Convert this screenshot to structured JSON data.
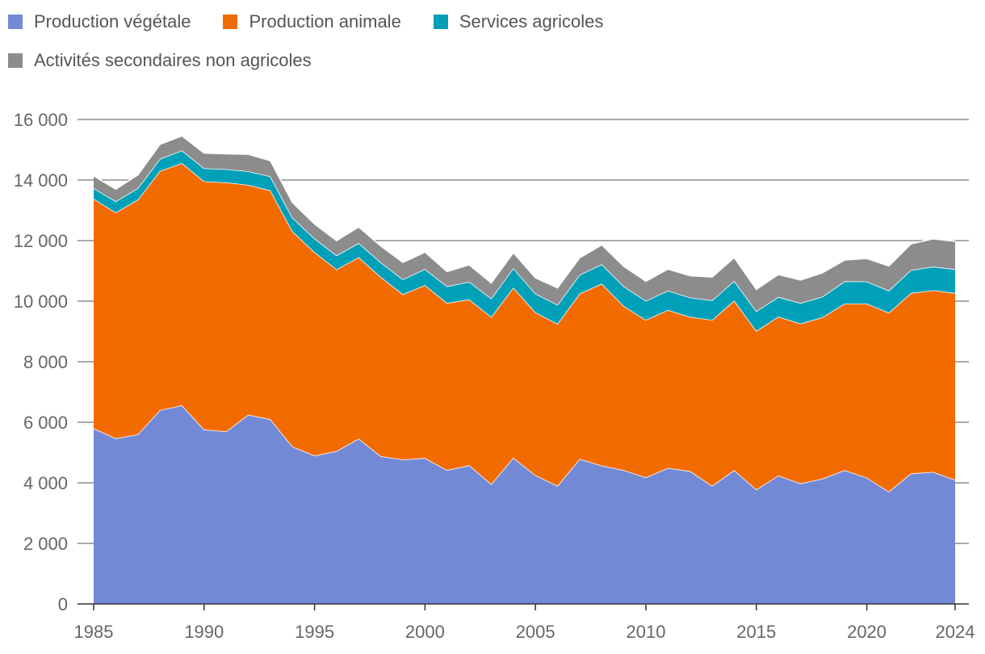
{
  "legend": [
    {
      "label": "Production végétale",
      "color": "#7289d6"
    },
    {
      "label": "Production animale",
      "color": "#f26b00"
    },
    {
      "label": "Services agricoles",
      "color": "#00a0b9"
    },
    {
      "label": "Activités secondaires non agricoles",
      "color": "#8c8c8c"
    }
  ],
  "chart_data": {
    "type": "area",
    "stacked": true,
    "grid": true,
    "legend_position": "top-left",
    "x": [
      1985,
      1986,
      1987,
      1988,
      1989,
      1990,
      1991,
      1992,
      1993,
      1994,
      1995,
      1996,
      1997,
      1998,
      1999,
      2000,
      2001,
      2002,
      2003,
      2004,
      2005,
      2006,
      2007,
      2008,
      2009,
      2010,
      2011,
      2012,
      2013,
      2014,
      2015,
      2016,
      2017,
      2018,
      2019,
      2020,
      2021,
      2022,
      2023,
      2024
    ],
    "xlim": [
      1985,
      2024
    ],
    "xticks": [
      "1985",
      "1990",
      "1995",
      "2000",
      "2005",
      "2010",
      "2015",
      "2020",
      "2024"
    ],
    "ylim": [
      0,
      16000
    ],
    "yticks": [
      "0",
      "2 000",
      "4 000",
      "6 000",
      "8 000",
      "10 000",
      "12 000",
      "14 000",
      "16 000"
    ],
    "series": [
      {
        "name": "Production végétale",
        "color": "#7289d6",
        "values": [
          5800,
          5470,
          5600,
          6400,
          6560,
          5760,
          5700,
          6250,
          6100,
          5200,
          4900,
          5050,
          5460,
          4880,
          4770,
          4820,
          4420,
          4580,
          3960,
          4830,
          4250,
          3900,
          4790,
          4570,
          4420,
          4180,
          4490,
          4390,
          3900,
          4420,
          3780,
          4240,
          3980,
          4140,
          4420,
          4170,
          3710,
          4310,
          4360,
          4100
        ]
      },
      {
        "name": "Production animale",
        "color": "#f26b00",
        "values": [
          7580,
          7460,
          7750,
          7900,
          8000,
          8200,
          8220,
          7590,
          7560,
          7110,
          6720,
          6000,
          5990,
          5920,
          5460,
          5710,
          5520,
          5480,
          5520,
          5620,
          5380,
          5350,
          5460,
          6010,
          5420,
          5200,
          5220,
          5090,
          5480,
          5600,
          5240,
          5250,
          5280,
          5330,
          5500,
          5750,
          5910,
          5960,
          6000,
          6170
        ]
      },
      {
        "name": "Services agricoles",
        "color": "#00a0b9",
        "values": [
          350,
          370,
          380,
          400,
          420,
          430,
          440,
          450,
          460,
          450,
          450,
          460,
          470,
          480,
          490,
          530,
          550,
          580,
          610,
          640,
          620,
          630,
          620,
          640,
          650,
          630,
          640,
          640,
          650,
          650,
          650,
          650,
          680,
          680,
          740,
          730,
          730,
          760,
          780,
          790
        ]
      },
      {
        "name": "Activités secondaires non agricoles",
        "color": "#8c8c8c",
        "values": [
          410,
          400,
          440,
          480,
          480,
          500,
          510,
          560,
          520,
          500,
          480,
          490,
          530,
          540,
          560,
          560,
          490,
          560,
          510,
          510,
          520,
          560,
          560,
          640,
          660,
          650,
          710,
          720,
          770,
          770,
          720,
          740,
          760,
          790,
          700,
          760,
          810,
          860,
          920,
          920
        ]
      }
    ]
  }
}
